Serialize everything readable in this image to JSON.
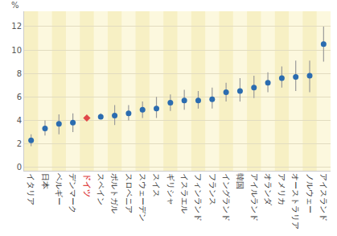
{
  "chart_data": {
    "type": "scatter",
    "y_label": "%",
    "categories": [
      "イタリア",
      "日本",
      "ベルギー",
      "デンマーク",
      "ドイツ",
      "スペイン",
      "ポルトガル",
      "スロベニア",
      "スウェーデン",
      "スイス",
      "ギリシャ",
      "イスラエル",
      "フィンランド",
      "フランス",
      "イングランド",
      "韓国",
      "アイルランド",
      "オランダ",
      "アメリカ",
      "オーストラリア",
      "ノルウェー",
      "アイスランド"
    ],
    "values": [
      2.3,
      3.3,
      3.7,
      3.8,
      4.2,
      4.3,
      4.4,
      4.6,
      4.9,
      5.0,
      5.5,
      5.7,
      5.7,
      5.8,
      6.4,
      6.5,
      6.8,
      7.2,
      7.6,
      7.7,
      7.8,
      10.5
    ],
    "ci_low": [
      1.8,
      2.7,
      2.8,
      3.0,
      4.0,
      4.1,
      3.6,
      4.0,
      4.2,
      4.2,
      4.8,
      4.9,
      5.0,
      5.0,
      5.6,
      5.6,
      5.9,
      6.4,
      6.8,
      6.5,
      6.4,
      9.0
    ],
    "ci_high": [
      2.8,
      4.0,
      4.5,
      4.6,
      4.4,
      4.6,
      5.3,
      5.3,
      5.6,
      6.0,
      6.2,
      6.6,
      6.5,
      6.8,
      7.2,
      7.6,
      7.8,
      8.1,
      8.6,
      9.1,
      9.1,
      12.0
    ],
    "color": "#2b6cb0",
    "colors": [
      "#2b6cb0",
      "#2b6cb0",
      "#2b6cb0",
      "#2b6cb0",
      "#e04848",
      "#2b6cb0",
      "#2b6cb0",
      "#2b6cb0",
      "#2b6cb0",
      "#2b6cb0",
      "#2b6cb0",
      "#2b6cb0",
      "#2b6cb0",
      "#2b6cb0",
      "#2b6cb0",
      "#2b6cb0",
      "#2b6cb0",
      "#2b6cb0",
      "#2b6cb0",
      "#2b6cb0",
      "#2b6cb0",
      "#2b6cb0"
    ],
    "marker": "circle",
    "ylim": [
      -0.3,
      13.3
    ],
    "yticks": [
      0,
      2,
      4,
      6,
      8,
      10,
      12
    ],
    "grid": true
  }
}
